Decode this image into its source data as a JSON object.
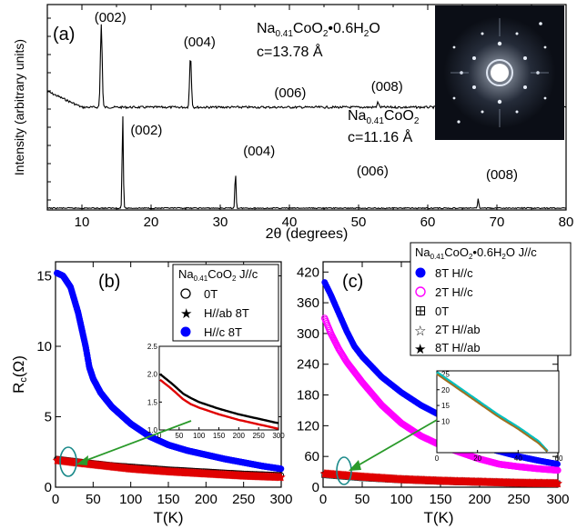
{
  "chart_data": [
    {
      "panel": "(a)",
      "type": "line",
      "xlabel": "2θ (degrees)",
      "ylabel": "Intensity (arbitrary units)",
      "xlim": [
        5,
        80
      ],
      "x_ticks": [
        "10",
        "20",
        "30",
        "40",
        "50",
        "60",
        "70",
        "80"
      ],
      "series": [
        {
          "name": "Na0.41CoO2•0.6H2O",
          "compound": {
            "base": "Na",
            "sub1": "0.41",
            "mid": "CoO",
            "sub2": "2",
            "tail": "•0.6H",
            "sub3": "2",
            "end": "O"
          },
          "lattice": "c=13.78 Å",
          "color": "#000000",
          "peak_label_color": "#e00000",
          "peaks": [
            {
              "label": "(002)",
              "x": 12.8,
              "height": 1.0
            },
            {
              "label": "(004)",
              "x": 25.7,
              "height": 0.62
            },
            {
              "label": "(006)",
              "x": 38.8,
              "height": 0.0
            },
            {
              "label": "(008)",
              "x": 52.8,
              "height": 0.06
            }
          ]
        },
        {
          "name": "Na0.41CoO2",
          "compound": {
            "base": "Na",
            "sub1": "0.41",
            "mid": "CoO",
            "sub2": "2"
          },
          "lattice": "c=11.16 Å",
          "color": "#000000",
          "peak_label_color": "#000000",
          "peaks": [
            {
              "label": "(002)",
              "x": 15.9,
              "height": 1.0
            },
            {
              "label": "(004)",
              "x": 32.2,
              "height": 0.38
            },
            {
              "label": "(006)",
              "x": 48.6,
              "height": 0.0
            },
            {
              "label": "(008)",
              "x": 67.3,
              "height": 0.1
            }
          ]
        }
      ],
      "inset": "Laue diffraction pattern (image)"
    },
    {
      "panel": "(b)",
      "type": "scatter",
      "xlabel": "T(K)",
      "ylabel": "Rc(Ω)",
      "xlim": [
        0,
        300
      ],
      "ylim": [
        0,
        16
      ],
      "x_ticks": [
        0,
        50,
        100,
        150,
        200,
        250,
        300
      ],
      "y_ticks": [
        0,
        5,
        10,
        15
      ],
      "legend_title": {
        "base": "Na",
        "sub1": "0.41",
        "mid": "CoO",
        "sub2": "2",
        "tail": " J//c"
      },
      "series": [
        {
          "name": "0T",
          "marker": "open-circle",
          "color": "#000000",
          "x": [
            2,
            25,
            50,
            75,
            100,
            150,
            200,
            250,
            300
          ],
          "y": [
            2.0,
            1.85,
            1.7,
            1.55,
            1.45,
            1.25,
            1.1,
            0.95,
            0.85
          ]
        },
        {
          "name": "H//ab  8T",
          "marker": "star",
          "color": "#e00000",
          "x": [
            2,
            25,
            50,
            75,
            100,
            150,
            200,
            250,
            300
          ],
          "y": [
            1.9,
            1.75,
            1.6,
            1.45,
            1.3,
            1.1,
            0.95,
            0.8,
            0.7
          ]
        },
        {
          "name": "H//c   8T",
          "marker": "filled-circle",
          "color": "#0000ff",
          "x": [
            2,
            10,
            20,
            30,
            40,
            45,
            50,
            60,
            75,
            100,
            125,
            150,
            175,
            200,
            225,
            250,
            275,
            300
          ],
          "y": [
            15.2,
            15.0,
            14.2,
            12.4,
            10.0,
            8.5,
            7.7,
            6.7,
            5.7,
            4.5,
            3.6,
            3.0,
            2.6,
            2.3,
            2.0,
            1.75,
            1.5,
            1.3
          ]
        }
      ],
      "inset": {
        "xlim": [
          0,
          300
        ],
        "ylim": [
          1.0,
          2.5
        ],
        "x_ticks": [
          0,
          50,
          100,
          150,
          200,
          250,
          300
        ],
        "y_ticks": [
          "1.0",
          "1.5",
          "2.0",
          "2.5"
        ],
        "series": [
          {
            "name": "0T",
            "color": "#000000",
            "x": [
              2,
              20,
              40,
              60,
              80,
              100,
              150,
              200,
              250,
              300
            ],
            "y": [
              2.0,
              1.9,
              1.78,
              1.65,
              1.57,
              1.5,
              1.38,
              1.28,
              1.2,
              1.12
            ]
          },
          {
            "name": "H//ab  8T",
            "color": "#e00000",
            "x": [
              2,
              20,
              40,
              60,
              80,
              100,
              150,
              200,
              250,
              300
            ],
            "y": [
              1.9,
              1.8,
              1.68,
              1.55,
              1.46,
              1.4,
              1.28,
              1.18,
              1.1,
              1.02
            ]
          }
        ]
      }
    },
    {
      "panel": "(c)",
      "type": "scatter",
      "xlabel": "T(K)",
      "xlim": [
        0,
        300
      ],
      "ylim": [
        0,
        440
      ],
      "x_ticks": [
        0,
        50,
        100,
        150,
        200,
        250,
        300
      ],
      "y_ticks": [
        0,
        60,
        120,
        180,
        240,
        300,
        360,
        420
      ],
      "legend_title": {
        "base": "Na",
        "sub1": "0.41",
        "mid": "CoO",
        "sub2": "2",
        "tail": "•0.6H",
        "sub3": "2",
        "end": "O J//c"
      },
      "series": [
        {
          "name": "8T  H//c",
          "marker": "filled-circle",
          "color": "#0000ff",
          "x": [
            2,
            10,
            20,
            30,
            40,
            50,
            75,
            100,
            125,
            150,
            155,
            160,
            175,
            200,
            225,
            250,
            275,
            300
          ],
          "y": [
            400,
            375,
            340,
            305,
            275,
            255,
            215,
            185,
            160,
            140,
            125,
            110,
            95,
            80,
            70,
            60,
            52,
            45
          ]
        },
        {
          "name": "2T  H//c",
          "marker": "open-circle",
          "color": "#ff00ff",
          "x": [
            2,
            10,
            20,
            30,
            40,
            50,
            75,
            100,
            125,
            150,
            175,
            200,
            225,
            250,
            275,
            300
          ],
          "y": [
            330,
            300,
            270,
            245,
            225,
            205,
            160,
            125,
            100,
            82,
            68,
            55,
            45,
            40,
            36,
            33
          ]
        },
        {
          "name": "0T",
          "marker": "boxed-plus",
          "color": "#000000",
          "x": [
            2,
            50,
            100,
            150,
            200,
            250,
            300
          ],
          "y": [
            24,
            18,
            14,
            11,
            9,
            8,
            7
          ]
        },
        {
          "name": "2T  H//ab",
          "marker": "open-star",
          "color": "#00a0a0",
          "x": [
            2,
            50,
            100,
            150,
            200,
            250,
            300
          ],
          "y": [
            25,
            19,
            15,
            12,
            10,
            8,
            7
          ]
        },
        {
          "name": "8T  H//ab",
          "marker": "star",
          "color": "#e00000",
          "x": [
            2,
            50,
            100,
            150,
            200,
            250,
            300
          ],
          "y": [
            26,
            20,
            15,
            12,
            10,
            8,
            7
          ]
        }
      ],
      "inset": {
        "xlim": [
          0,
          60
        ],
        "ylim": [
          0,
          26
        ],
        "x_ticks": [
          0,
          20,
          40,
          60
        ],
        "y_ticks": [
          10,
          15,
          20,
          25
        ],
        "series": [
          {
            "name": "2T  H//ab",
            "color": "#00c0c0",
            "x": [
              0,
              10,
              20,
              30,
              40,
              50,
              55
            ],
            "y": [
              25.5,
              21,
              16.5,
              12,
              8,
              3.5,
              0
            ]
          },
          {
            "name": "8T  H//ab",
            "color": "#a07020",
            "x": [
              0,
              10,
              20,
              30,
              40,
              50,
              55
            ],
            "y": [
              25,
              20.5,
              16,
              11.5,
              7.5,
              3,
              0
            ]
          }
        ]
      }
    }
  ]
}
